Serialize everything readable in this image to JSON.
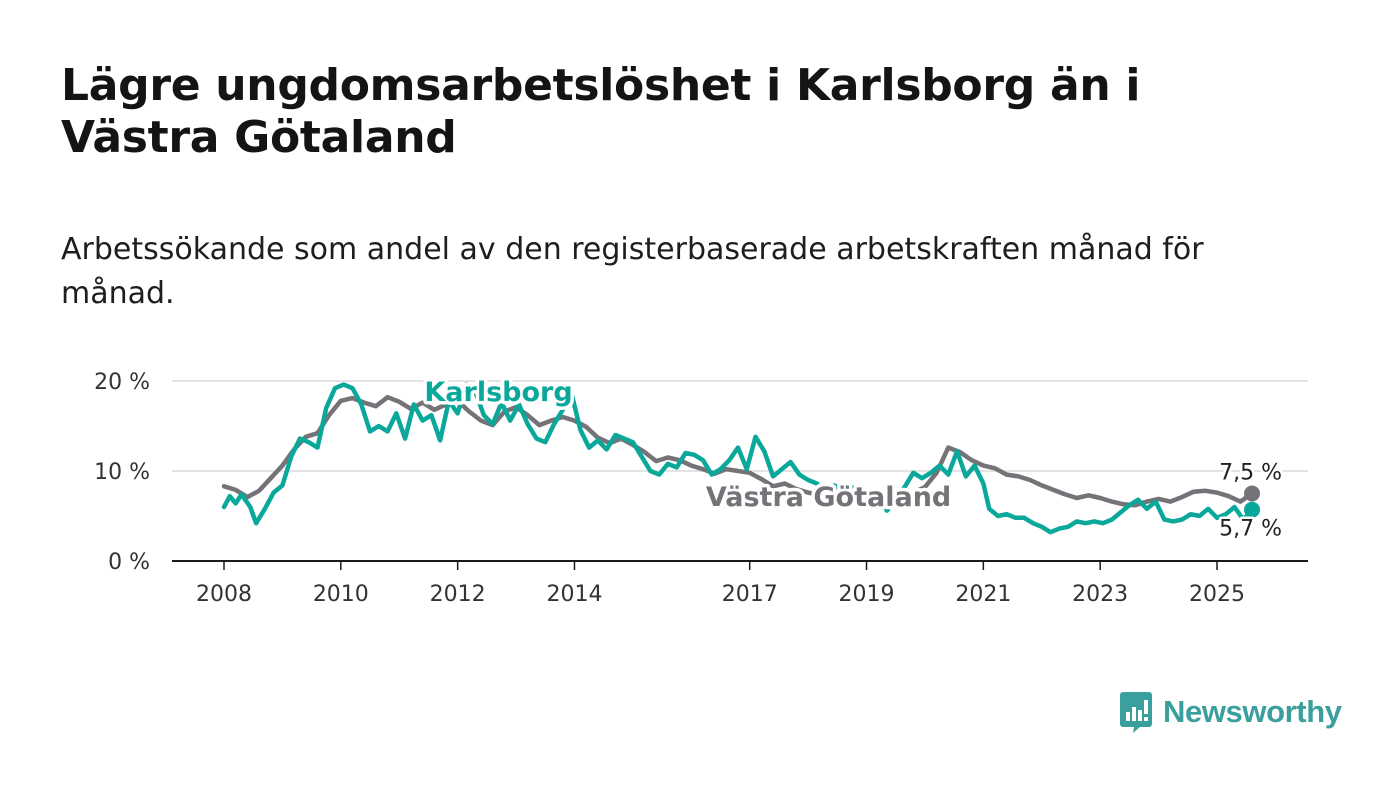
{
  "title": "Lägre ungdomsarbetslöshet i Karlsborg än i Västra Götaland",
  "subtitle": "Arbetssökande som andel av den registerbaserade arbetskraften månad för månad.",
  "brand": {
    "name": "Newsworthy",
    "color": "#3a9f9d"
  },
  "chart_data": {
    "type": "line",
    "title": "Lägre ungdomsarbetslöshet i Karlsborg än i Västra Götaland",
    "xlabel": "",
    "ylabel": "",
    "xlim": [
      2007.2,
      2026.5
    ],
    "ylim": [
      0,
      20
    ],
    "grid": true,
    "y_ticks": [
      {
        "value": 0,
        "label": "0 %"
      },
      {
        "value": 10,
        "label": "10 %"
      },
      {
        "value": 20,
        "label": "20 %"
      }
    ],
    "x_ticks": [
      {
        "value": 2008,
        "label": "2008"
      },
      {
        "value": 2010,
        "label": "2010"
      },
      {
        "value": 2012,
        "label": "2012"
      },
      {
        "value": 2014,
        "label": "2014"
      },
      {
        "value": 2017,
        "label": "2017"
      },
      {
        "value": 2019,
        "label": "2019"
      },
      {
        "value": 2021,
        "label": "2021"
      },
      {
        "value": 2023,
        "label": "2023"
      },
      {
        "value": 2025,
        "label": "2025"
      }
    ],
    "series": [
      {
        "name": "Västra Götaland",
        "label": "Västra Götaland",
        "color": "#757278",
        "label_at": [
          2018.35,
          7.2
        ],
        "end_label": "7,5 %",
        "points": [
          [
            2008.0,
            8.3
          ],
          [
            2008.2,
            7.9
          ],
          [
            2008.4,
            7.1
          ],
          [
            2008.6,
            7.8
          ],
          [
            2008.8,
            9.2
          ],
          [
            2009.0,
            10.6
          ],
          [
            2009.2,
            12.4
          ],
          [
            2009.4,
            13.8
          ],
          [
            2009.6,
            14.2
          ],
          [
            2009.8,
            16.2
          ],
          [
            2010.0,
            17.8
          ],
          [
            2010.2,
            18.1
          ],
          [
            2010.4,
            17.6
          ],
          [
            2010.6,
            17.2
          ],
          [
            2010.8,
            18.2
          ],
          [
            2011.0,
            17.7
          ],
          [
            2011.2,
            16.9
          ],
          [
            2011.4,
            17.6
          ],
          [
            2011.6,
            16.8
          ],
          [
            2011.8,
            17.4
          ],
          [
            2012.0,
            17.8
          ],
          [
            2012.2,
            16.6
          ],
          [
            2012.4,
            15.6
          ],
          [
            2012.6,
            15.1
          ],
          [
            2012.8,
            16.6
          ],
          [
            2013.0,
            17.1
          ],
          [
            2013.2,
            16.2
          ],
          [
            2013.4,
            15.1
          ],
          [
            2013.6,
            15.6
          ],
          [
            2013.8,
            16.0
          ],
          [
            2014.0,
            15.6
          ],
          [
            2014.2,
            14.9
          ],
          [
            2014.4,
            13.7
          ],
          [
            2014.6,
            13.1
          ],
          [
            2014.8,
            13.6
          ],
          [
            2015.0,
            12.9
          ],
          [
            2015.2,
            12.1
          ],
          [
            2015.4,
            11.1
          ],
          [
            2015.6,
            11.5
          ],
          [
            2015.8,
            11.2
          ],
          [
            2016.0,
            10.6
          ],
          [
            2016.2,
            10.2
          ],
          [
            2016.4,
            9.7
          ],
          [
            2016.6,
            10.2
          ],
          [
            2016.8,
            10.0
          ],
          [
            2017.0,
            9.8
          ],
          [
            2017.2,
            9.1
          ],
          [
            2017.4,
            8.3
          ],
          [
            2017.6,
            8.6
          ],
          [
            2017.8,
            8.0
          ],
          [
            2018.0,
            7.6
          ],
          [
            2018.2,
            7.3
          ],
          [
            2018.4,
            7.2
          ],
          [
            2018.6,
            7.4
          ],
          [
            2018.8,
            7.3
          ],
          [
            2019.0,
            7.1
          ],
          [
            2019.2,
            7.2
          ],
          [
            2019.4,
            6.8
          ],
          [
            2019.6,
            7.1
          ],
          [
            2019.8,
            7.6
          ],
          [
            2020.0,
            8.2
          ],
          [
            2020.2,
            9.8
          ],
          [
            2020.4,
            12.6
          ],
          [
            2020.6,
            12.1
          ],
          [
            2020.8,
            11.2
          ],
          [
            2021.0,
            10.6
          ],
          [
            2021.2,
            10.3
          ],
          [
            2021.4,
            9.6
          ],
          [
            2021.6,
            9.4
          ],
          [
            2021.8,
            9.0
          ],
          [
            2022.0,
            8.4
          ],
          [
            2022.2,
            7.9
          ],
          [
            2022.4,
            7.4
          ],
          [
            2022.6,
            7.0
          ],
          [
            2022.8,
            7.3
          ],
          [
            2023.0,
            7.0
          ],
          [
            2023.2,
            6.6
          ],
          [
            2023.4,
            6.3
          ],
          [
            2023.6,
            6.2
          ],
          [
            2023.8,
            6.6
          ],
          [
            2024.0,
            6.9
          ],
          [
            2024.2,
            6.6
          ],
          [
            2024.4,
            7.1
          ],
          [
            2024.6,
            7.7
          ],
          [
            2024.8,
            7.8
          ],
          [
            2025.0,
            7.6
          ],
          [
            2025.2,
            7.2
          ],
          [
            2025.4,
            6.6
          ],
          [
            2025.6,
            7.5
          ]
        ]
      },
      {
        "name": "Karlsborg",
        "label": "Karlsborg",
        "color": "#0aa89a",
        "label_at": [
          2012.7,
          18.9
        ],
        "end_label": "5,7 %",
        "points": [
          [
            2008.0,
            6.0
          ],
          [
            2008.1,
            7.2
          ],
          [
            2008.2,
            6.4
          ],
          [
            2008.3,
            7.4
          ],
          [
            2008.45,
            6.0
          ],
          [
            2008.55,
            4.2
          ],
          [
            2008.7,
            5.8
          ],
          [
            2008.85,
            7.6
          ],
          [
            2009.0,
            8.4
          ],
          [
            2009.15,
            11.6
          ],
          [
            2009.3,
            13.6
          ],
          [
            2009.45,
            13.2
          ],
          [
            2009.6,
            12.6
          ],
          [
            2009.75,
            17.0
          ],
          [
            2009.9,
            19.2
          ],
          [
            2010.05,
            19.6
          ],
          [
            2010.2,
            19.2
          ],
          [
            2010.35,
            17.4
          ],
          [
            2010.5,
            14.4
          ],
          [
            2010.65,
            15.0
          ],
          [
            2010.8,
            14.4
          ],
          [
            2010.95,
            16.4
          ],
          [
            2011.1,
            13.6
          ],
          [
            2011.25,
            17.4
          ],
          [
            2011.4,
            15.6
          ],
          [
            2011.55,
            16.2
          ],
          [
            2011.7,
            13.4
          ],
          [
            2011.85,
            17.8
          ],
          [
            2012.0,
            16.4
          ],
          [
            2012.15,
            19.6
          ],
          [
            2012.3,
            18.8
          ],
          [
            2012.45,
            16.2
          ],
          [
            2012.6,
            15.2
          ],
          [
            2012.75,
            17.6
          ],
          [
            2012.9,
            15.6
          ],
          [
            2013.05,
            17.4
          ],
          [
            2013.2,
            15.2
          ],
          [
            2013.35,
            13.6
          ],
          [
            2013.5,
            13.2
          ],
          [
            2013.65,
            15.2
          ],
          [
            2013.8,
            16.8
          ],
          [
            2013.95,
            18.6
          ],
          [
            2014.1,
            14.6
          ],
          [
            2014.25,
            12.6
          ],
          [
            2014.4,
            13.4
          ],
          [
            2014.55,
            12.4
          ],
          [
            2014.7,
            14.0
          ],
          [
            2014.85,
            13.6
          ],
          [
            2015.0,
            13.2
          ],
          [
            2015.15,
            11.6
          ],
          [
            2015.3,
            10.0
          ],
          [
            2015.45,
            9.6
          ],
          [
            2015.6,
            10.8
          ],
          [
            2015.75,
            10.4
          ],
          [
            2015.9,
            12.0
          ],
          [
            2016.05,
            11.8
          ],
          [
            2016.2,
            11.2
          ],
          [
            2016.35,
            9.6
          ],
          [
            2016.5,
            10.2
          ],
          [
            2016.65,
            11.2
          ],
          [
            2016.8,
            12.6
          ],
          [
            2016.95,
            10.2
          ],
          [
            2017.1,
            13.8
          ],
          [
            2017.25,
            12.2
          ],
          [
            2017.4,
            9.4
          ],
          [
            2017.55,
            10.2
          ],
          [
            2017.7,
            11.0
          ],
          [
            2017.85,
            9.6
          ],
          [
            2018.0,
            9.0
          ],
          [
            2018.15,
            8.6
          ],
          [
            2018.3,
            7.6
          ],
          [
            2018.45,
            8.4
          ],
          [
            2018.6,
            7.8
          ],
          [
            2018.75,
            8.2
          ],
          [
            2018.9,
            7.6
          ],
          [
            2019.05,
            7.2
          ],
          [
            2019.2,
            6.8
          ],
          [
            2019.35,
            5.6
          ],
          [
            2019.5,
            6.8
          ],
          [
            2019.65,
            8.2
          ],
          [
            2019.8,
            9.8
          ],
          [
            2019.95,
            9.2
          ],
          [
            2020.1,
            9.8
          ],
          [
            2020.25,
            10.6
          ],
          [
            2020.4,
            9.6
          ],
          [
            2020.55,
            12.2
          ],
          [
            2020.7,
            9.4
          ],
          [
            2020.85,
            10.6
          ],
          [
            2021.0,
            8.6
          ],
          [
            2021.1,
            5.8
          ],
          [
            2021.25,
            5.0
          ],
          [
            2021.4,
            5.2
          ],
          [
            2021.55,
            4.8
          ],
          [
            2021.7,
            4.8
          ],
          [
            2021.85,
            4.2
          ],
          [
            2022.0,
            3.8
          ],
          [
            2022.15,
            3.2
          ],
          [
            2022.3,
            3.6
          ],
          [
            2022.45,
            3.8
          ],
          [
            2022.6,
            4.4
          ],
          [
            2022.75,
            4.2
          ],
          [
            2022.9,
            4.4
          ],
          [
            2023.05,
            4.2
          ],
          [
            2023.2,
            4.6
          ],
          [
            2023.35,
            5.4
          ],
          [
            2023.5,
            6.2
          ],
          [
            2023.65,
            6.8
          ],
          [
            2023.8,
            5.8
          ],
          [
            2023.95,
            6.6
          ],
          [
            2024.1,
            4.6
          ],
          [
            2024.25,
            4.4
          ],
          [
            2024.4,
            4.6
          ],
          [
            2024.55,
            5.2
          ],
          [
            2024.7,
            5.0
          ],
          [
            2024.85,
            5.8
          ],
          [
            2025.0,
            4.8
          ],
          [
            2025.15,
            5.2
          ],
          [
            2025.3,
            6.0
          ],
          [
            2025.45,
            4.6
          ],
          [
            2025.6,
            5.7
          ]
        ]
      }
    ]
  }
}
